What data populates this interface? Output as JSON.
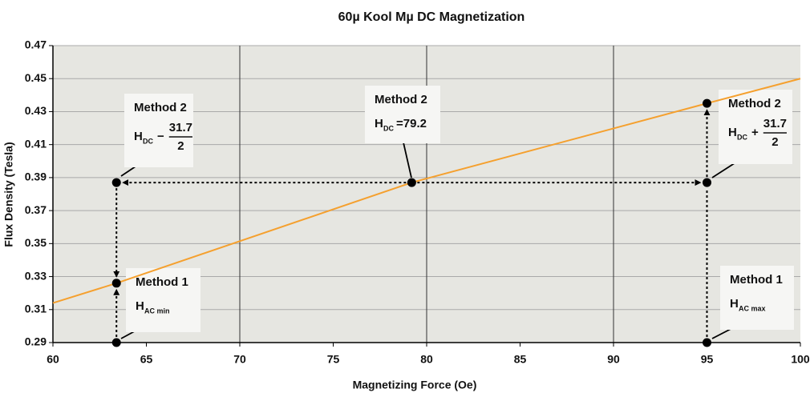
{
  "chart_data": {
    "type": "line",
    "title": "60µ Kool Mµ DC Magnetization",
    "x_label": "Magnetizing Force (Oe)",
    "y_label": "Flux Density (Tesla)",
    "xlim": [
      60,
      100
    ],
    "ylim": [
      0.29,
      0.47
    ],
    "xticks": [
      60,
      65,
      70,
      75,
      80,
      85,
      90,
      95,
      100
    ],
    "yticks": [
      0.29,
      0.31,
      0.33,
      0.35,
      0.37,
      0.39,
      0.41,
      0.43,
      0.45,
      0.47
    ],
    "major_xgrid": [
      70,
      80,
      90
    ],
    "series": [
      {
        "color": "#f5a02e",
        "x": [
          60,
          63.4,
          79.2,
          95,
          100
        ],
        "values": [
          0.314,
          0.326,
          0.387,
          0.435,
          0.45
        ]
      },
      {
        "color": "#000000",
        "x": [
          63.4,
          63.4,
          63.4,
          79.2,
          95,
          95,
          95
        ],
        "values": [
          0.29,
          0.326,
          0.387,
          0.387,
          0.387,
          0.435,
          0.29
        ]
      }
    ],
    "annotations": [
      {
        "label": "Method 2",
        "h": "H",
        "sub": "DC",
        "op": "−",
        "num": "31.7",
        "den": "2"
      },
      {
        "label": "Method 2",
        "h": "H",
        "sub": "DC",
        "rest": "=79.2"
      },
      {
        "label": "Method 2",
        "h": "H",
        "sub": "DC",
        "op": "+",
        "num": "31.7",
        "den": "2"
      },
      {
        "label": "Method 1",
        "h": "H",
        "sub": "AC min"
      },
      {
        "label": "Method 1",
        "h": "H",
        "sub": "AC max"
      }
    ]
  }
}
